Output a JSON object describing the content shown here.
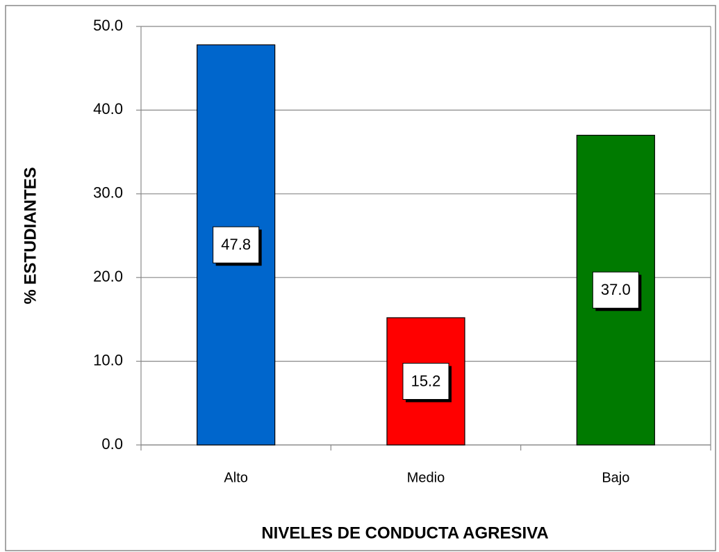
{
  "chart_data": {
    "type": "bar",
    "categories": [
      "Alto",
      "Medio",
      "Bajo"
    ],
    "values": [
      47.8,
      15.2,
      37.0
    ],
    "value_labels": [
      "47.8",
      "15.2",
      "37.0"
    ],
    "colors": [
      "#0066cc",
      "#ff0000",
      "#007a00"
    ],
    "ylabel": "% ESTUDIANTES",
    "xlabel": "NIVELES DE CONDUCTA AGRESIVA",
    "ylim": [
      0,
      50
    ],
    "yticks": [
      {
        "value": 0,
        "label": "0.0"
      },
      {
        "value": 10,
        "label": "10.0"
      },
      {
        "value": 20,
        "label": "20.0"
      },
      {
        "value": 30,
        "label": "30.0"
      },
      {
        "value": 40,
        "label": "40.0"
      },
      {
        "value": 50,
        "label": "50.0"
      }
    ],
    "grid": true
  }
}
